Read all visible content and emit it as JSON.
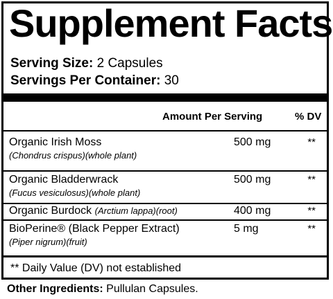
{
  "title": "Supplement Facts",
  "serving_size": {
    "label": "Serving Size:",
    "value": "2 Capsules"
  },
  "servings_per_container": {
    "label": "Servings Per Container:",
    "value": "30"
  },
  "columns": {
    "amount": "Amount Per Serving",
    "dv": "% DV"
  },
  "ingredients": [
    {
      "name": "Organic Irish Moss",
      "sub": "(Chondrus crispus)(whole plant)",
      "amount": "500 mg",
      "dv": "**"
    },
    {
      "name": "Organic Bladderwrack",
      "sub": "(Fucus vesiculosus)(whole plant)",
      "amount": "500 mg",
      "dv": "**"
    },
    {
      "name": "Organic Burdock",
      "inline_sub": "(Arctium lappa)(root)",
      "amount": "400 mg",
      "dv": "**"
    },
    {
      "name": "BioPerine® (Black Pepper Extract)",
      "sub": "(Piper nigrum)(fruit)",
      "amount": "5 mg",
      "dv": "**"
    }
  ],
  "footnote": "** Daily Value (DV) not established",
  "other_ingredients": {
    "label": "Other Ingredients:",
    "value": "Pullulan Capsules."
  }
}
